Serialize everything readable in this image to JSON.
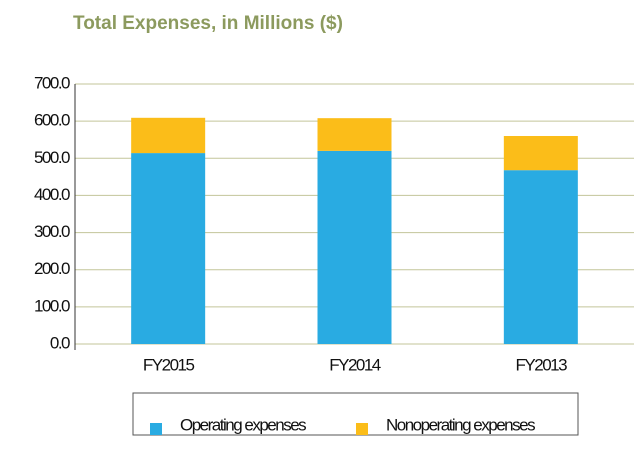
{
  "chart_data": {
    "type": "stacked_bar",
    "title": "Total Expenses, in Millions ($)",
    "categories": [
      "FY2015",
      "FY2014",
      "FY2013"
    ],
    "series": [
      {
        "name": "Operating expenses",
        "color": "#29abe2",
        "values": [
          514,
          520,
          468
        ]
      },
      {
        "name": "Nonoperating expenses",
        "color": "#fbbd19",
        "values": [
          95,
          88,
          92
        ]
      }
    ],
    "ylim": [
      0,
      700
    ],
    "yticks": [
      {
        "value": 0,
        "label": "0.0"
      },
      {
        "value": 100,
        "label": "100.0"
      },
      {
        "value": 200,
        "label": "200.0"
      },
      {
        "value": 300,
        "label": "300.0"
      },
      {
        "value": 400,
        "label": "400.0"
      },
      {
        "value": 500,
        "label": "500.0"
      },
      {
        "value": 600,
        "label": "600.0"
      },
      {
        "value": 700,
        "label": "700.0"
      }
    ],
    "grid": true
  }
}
